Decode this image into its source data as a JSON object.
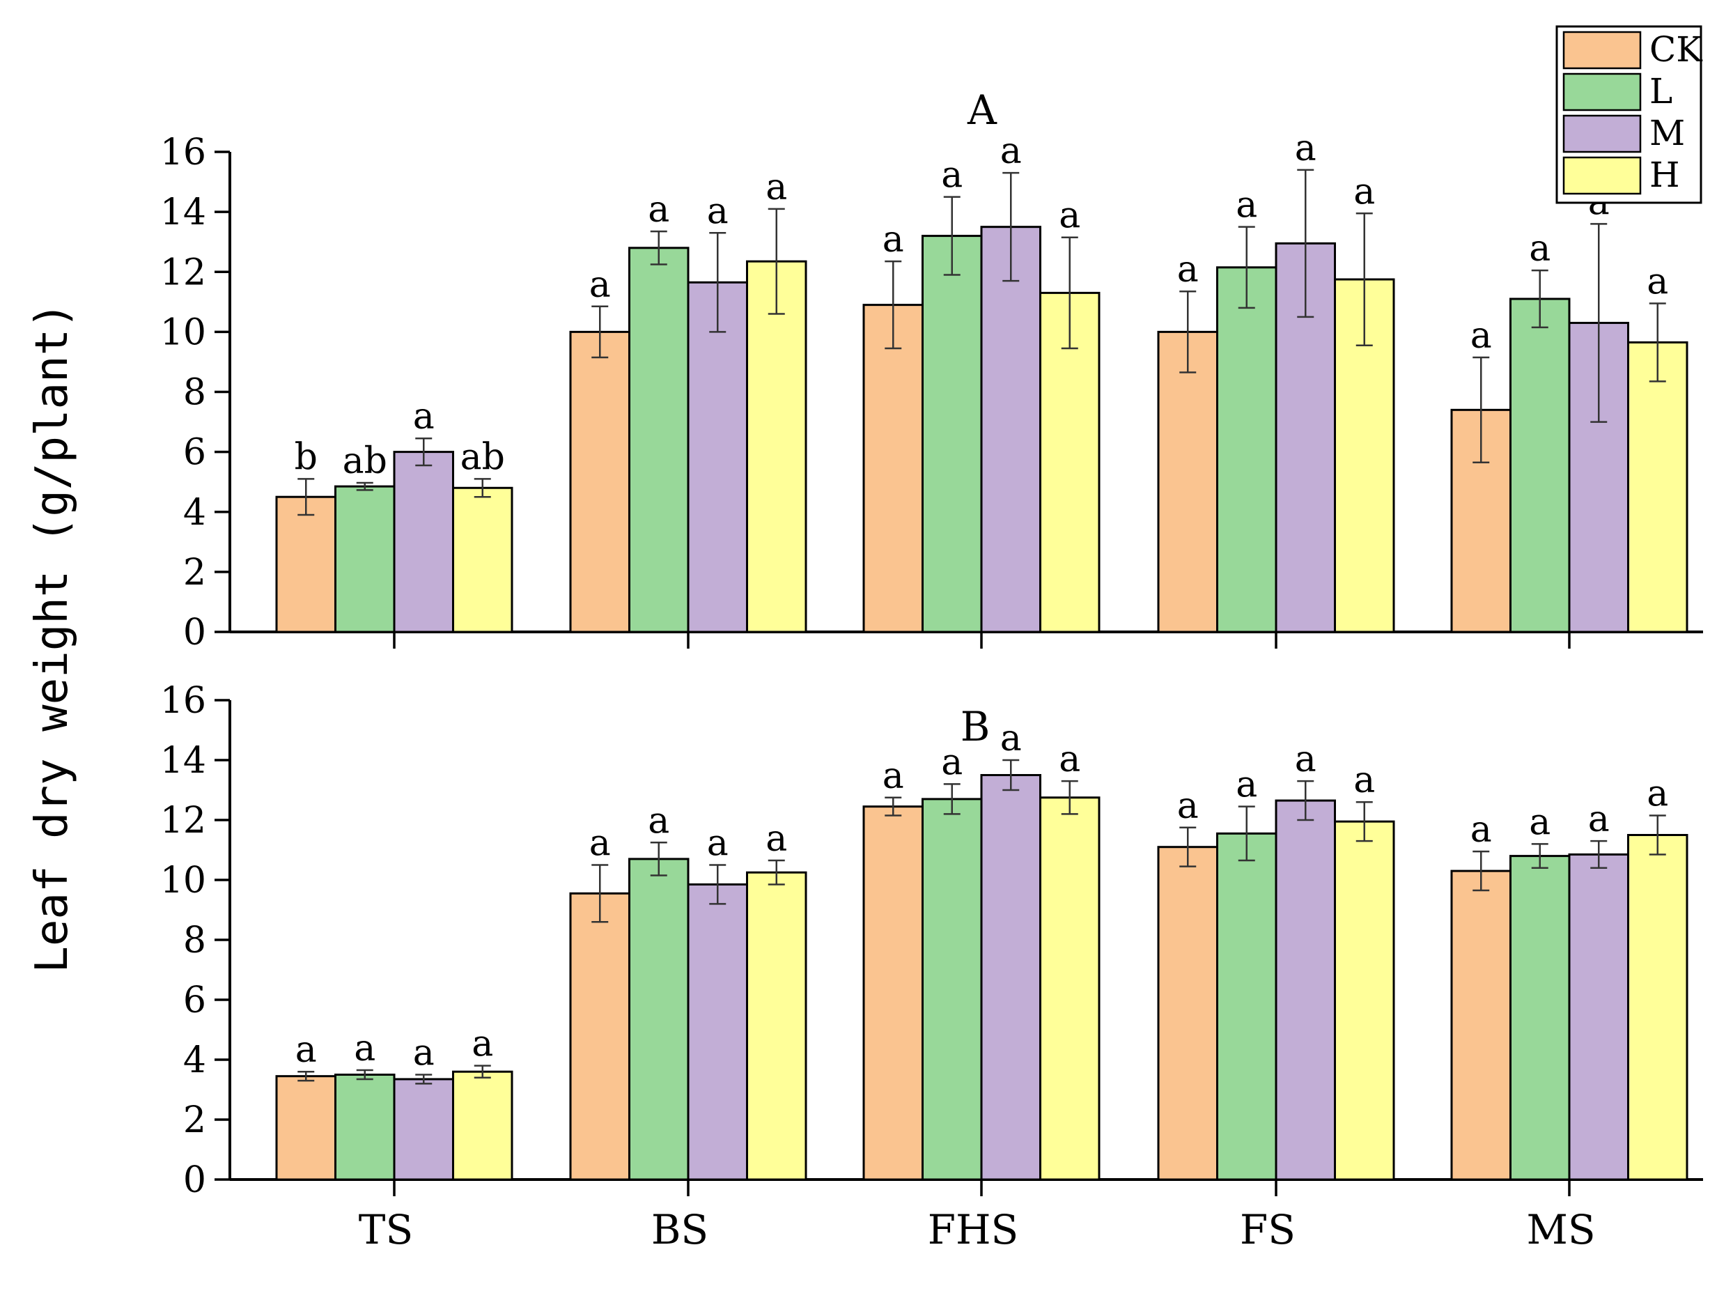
{
  "chart_data": {
    "type": "bar",
    "ylabel": "Leaf dry weight (g/plant)",
    "categories": [
      "TS",
      "BS",
      "FHS",
      "FS",
      "MS"
    ],
    "ylim": [
      0,
      16
    ],
    "yticks": [
      0,
      2,
      4,
      6,
      8,
      10,
      12,
      14,
      16
    ],
    "legend": {
      "placement": "top-right",
      "entries": [
        {
          "name": "CK",
          "color": "#FAC490"
        },
        {
          "name": "L",
          "color": "#98D899"
        },
        {
          "name": "M",
          "color": "#C2AED6"
        },
        {
          "name": "H",
          "color": "#FFFF99"
        }
      ]
    },
    "panels": [
      {
        "title": "A",
        "series": [
          {
            "name": "CK",
            "values": [
              4.5,
              10.0,
              10.9,
              10.0,
              7.4
            ],
            "errors": [
              0.6,
              0.85,
              1.45,
              1.35,
              1.75
            ],
            "labels": [
              "b",
              "a",
              "a",
              "a",
              "a"
            ]
          },
          {
            "name": "L",
            "values": [
              4.85,
              12.8,
              13.2,
              12.15,
              11.1
            ],
            "errors": [
              0.12,
              0.55,
              1.3,
              1.35,
              0.95
            ],
            "labels": [
              "ab",
              "a",
              "a",
              "a",
              "a"
            ]
          },
          {
            "name": "M",
            "values": [
              6.0,
              11.65,
              13.5,
              12.95,
              10.3
            ],
            "errors": [
              0.45,
              1.65,
              1.8,
              2.45,
              3.3
            ],
            "labels": [
              "a",
              "a",
              "a",
              "a",
              "a"
            ]
          },
          {
            "name": "H",
            "values": [
              4.8,
              12.35,
              11.3,
              11.75,
              9.65
            ],
            "errors": [
              0.3,
              1.75,
              1.85,
              2.2,
              1.3
            ],
            "labels": [
              "ab",
              "a",
              "a",
              "a",
              "a"
            ]
          }
        ]
      },
      {
        "title": "B",
        "series": [
          {
            "name": "CK",
            "values": [
              3.45,
              9.55,
              12.45,
              11.1,
              10.3
            ],
            "errors": [
              0.15,
              0.95,
              0.3,
              0.65,
              0.65
            ],
            "labels": [
              "a",
              "a",
              "a",
              "a",
              "a"
            ]
          },
          {
            "name": "L",
            "values": [
              3.5,
              10.7,
              12.7,
              11.55,
              10.8
            ],
            "errors": [
              0.15,
              0.55,
              0.5,
              0.9,
              0.4
            ],
            "labels": [
              "a",
              "a",
              "a",
              "a",
              "a"
            ]
          },
          {
            "name": "M",
            "values": [
              3.35,
              9.85,
              13.5,
              12.65,
              10.85
            ],
            "errors": [
              0.15,
              0.65,
              0.5,
              0.65,
              0.45
            ],
            "labels": [
              "a",
              "a",
              "a",
              "a",
              "a"
            ]
          },
          {
            "name": "H",
            "values": [
              3.6,
              10.25,
              12.75,
              11.95,
              11.5
            ],
            "errors": [
              0.2,
              0.4,
              0.55,
              0.65,
              0.65
            ],
            "labels": [
              "a",
              "a",
              "a",
              "a",
              "a"
            ]
          }
        ]
      }
    ]
  }
}
